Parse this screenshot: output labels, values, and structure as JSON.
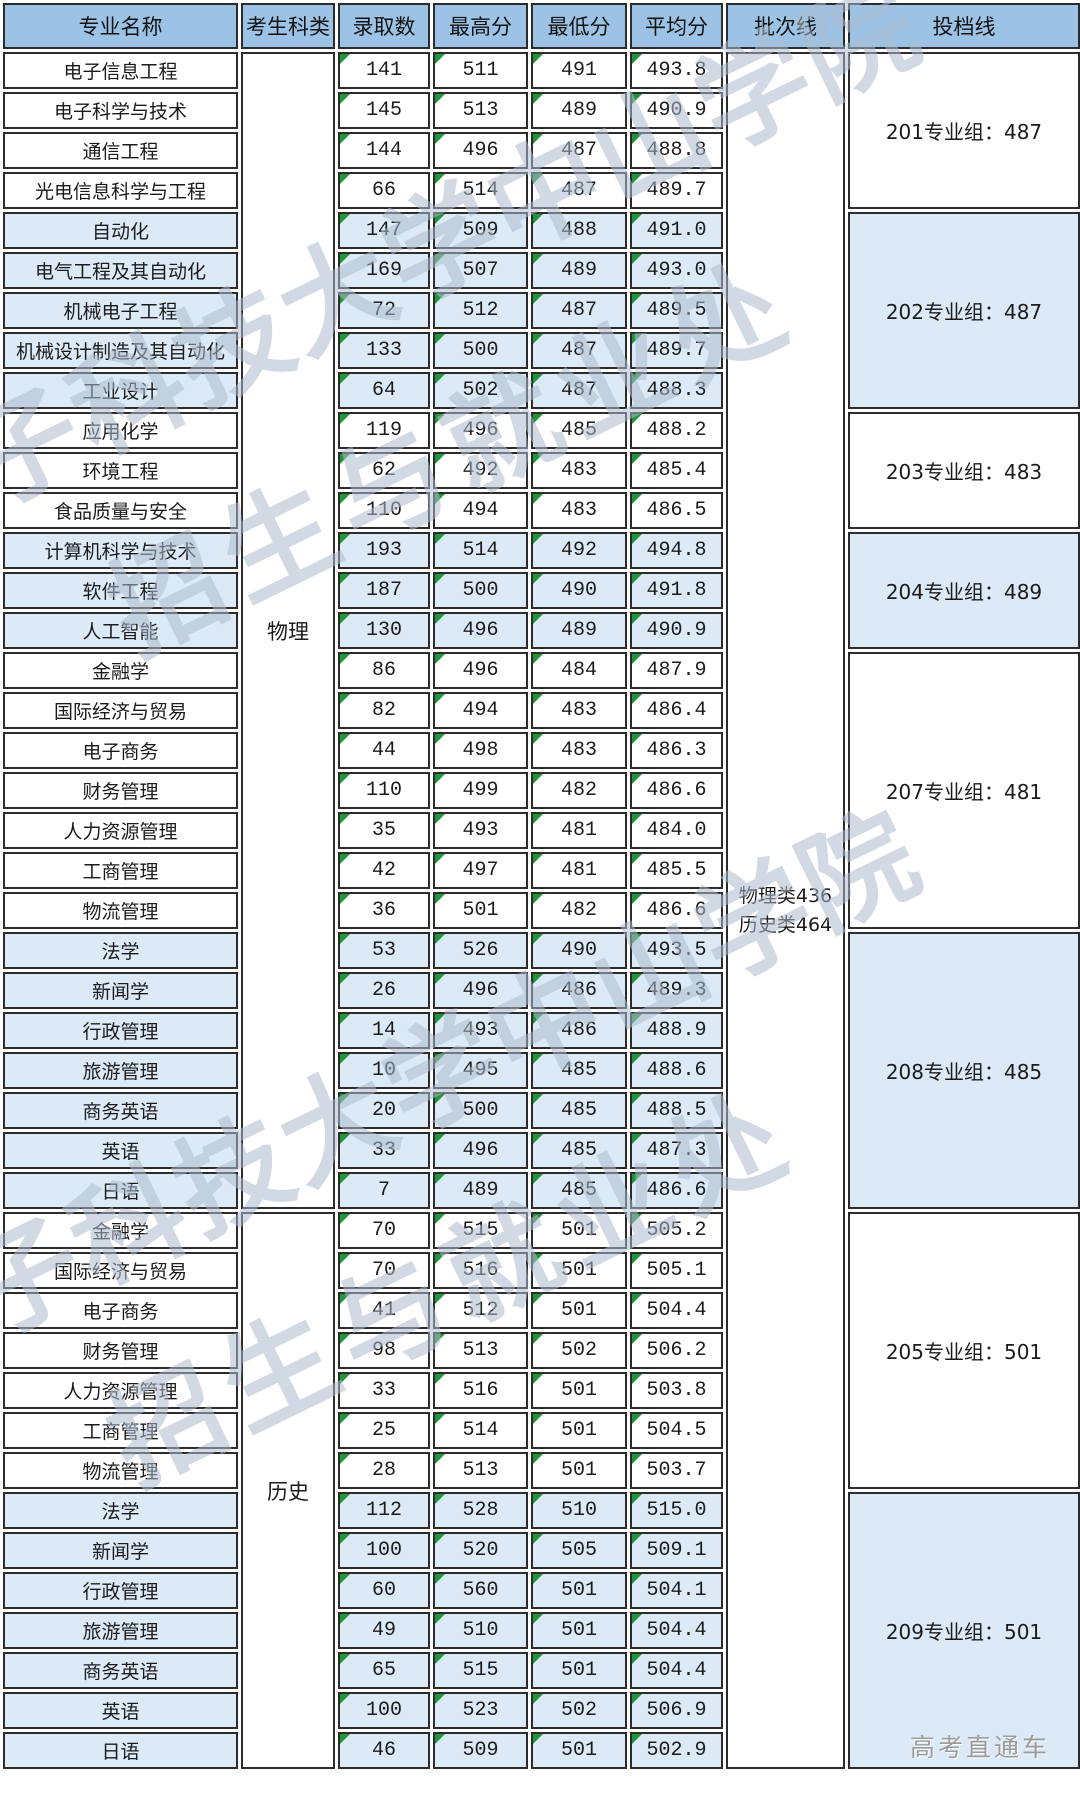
{
  "chart_data": {
    "type": "table",
    "columns": [
      "专业名称",
      "考生科类",
      "录取数",
      "最高分",
      "最低分",
      "平均分",
      "批次线",
      "投档线"
    ],
    "batch_line": [
      "物理类436",
      "历史类464"
    ],
    "sections": [
      {
        "category": "物理",
        "groups": [
          {
            "label": "201专业组：487",
            "shaded": false,
            "rows": [
              {
                "major": "电子信息工程",
                "count": "141",
                "max": "511",
                "min": "491",
                "avg": "493.8"
              },
              {
                "major": "电子科学与技术",
                "count": "145",
                "max": "513",
                "min": "489",
                "avg": "490.9"
              },
              {
                "major": "通信工程",
                "count": "144",
                "max": "496",
                "min": "487",
                "avg": "488.8"
              },
              {
                "major": "光电信息科学与工程",
                "count": "66",
                "max": "514",
                "min": "487",
                "avg": "489.7"
              }
            ]
          },
          {
            "label": "202专业组：487",
            "shaded": true,
            "rows": [
              {
                "major": "自动化",
                "count": "147",
                "max": "509",
                "min": "488",
                "avg": "491.0"
              },
              {
                "major": "电气工程及其自动化",
                "count": "169",
                "max": "507",
                "min": "489",
                "avg": "493.0"
              },
              {
                "major": "机械电子工程",
                "count": "72",
                "max": "512",
                "min": "487",
                "avg": "489.5"
              },
              {
                "major": "机械设计制造及其自动化",
                "count": "133",
                "max": "500",
                "min": "487",
                "avg": "489.7"
              },
              {
                "major": "工业设计",
                "count": "64",
                "max": "502",
                "min": "487",
                "avg": "488.3"
              }
            ]
          },
          {
            "label": "203专业组：483",
            "shaded": false,
            "rows": [
              {
                "major": "应用化学",
                "count": "119",
                "max": "496",
                "min": "485",
                "avg": "488.2"
              },
              {
                "major": "环境工程",
                "count": "62",
                "max": "492",
                "min": "483",
                "avg": "485.4"
              },
              {
                "major": "食品质量与安全",
                "count": "110",
                "max": "494",
                "min": "483",
                "avg": "486.5"
              }
            ]
          },
          {
            "label": "204专业组：489",
            "shaded": true,
            "rows": [
              {
                "major": "计算机科学与技术",
                "count": "193",
                "max": "514",
                "min": "492",
                "avg": "494.8"
              },
              {
                "major": "软件工程",
                "count": "187",
                "max": "500",
                "min": "490",
                "avg": "491.8"
              },
              {
                "major": "人工智能",
                "count": "130",
                "max": "496",
                "min": "489",
                "avg": "490.9"
              }
            ]
          },
          {
            "label": "207专业组：481",
            "shaded": false,
            "rows": [
              {
                "major": "金融学",
                "count": "86",
                "max": "496",
                "min": "484",
                "avg": "487.9"
              },
              {
                "major": "国际经济与贸易",
                "count": "82",
                "max": "494",
                "min": "483",
                "avg": "486.4"
              },
              {
                "major": "电子商务",
                "count": "44",
                "max": "498",
                "min": "483",
                "avg": "486.3"
              },
              {
                "major": "财务管理",
                "count": "110",
                "max": "499",
                "min": "482",
                "avg": "486.6"
              },
              {
                "major": "人力资源管理",
                "count": "35",
                "max": "493",
                "min": "481",
                "avg": "484.0"
              },
              {
                "major": "工商管理",
                "count": "42",
                "max": "497",
                "min": "481",
                "avg": "485.5"
              },
              {
                "major": "物流管理",
                "count": "36",
                "max": "501",
                "min": "482",
                "avg": "486.6"
              }
            ]
          },
          {
            "label": "208专业组：485",
            "shaded": true,
            "rows": [
              {
                "major": "法学",
                "count": "53",
                "max": "526",
                "min": "490",
                "avg": "493.5"
              },
              {
                "major": "新闻学",
                "count": "26",
                "max": "496",
                "min": "486",
                "avg": "489.3"
              },
              {
                "major": "行政管理",
                "count": "14",
                "max": "493",
                "min": "486",
                "avg": "488.9"
              },
              {
                "major": "旅游管理",
                "count": "10",
                "max": "495",
                "min": "485",
                "avg": "488.6"
              },
              {
                "major": "商务英语",
                "count": "20",
                "max": "500",
                "min": "485",
                "avg": "488.5"
              },
              {
                "major": "英语",
                "count": "33",
                "max": "496",
                "min": "485",
                "avg": "487.3"
              },
              {
                "major": "日语",
                "count": "7",
                "max": "489",
                "min": "485",
                "avg": "486.6"
              }
            ]
          }
        ]
      },
      {
        "category": "历史",
        "groups": [
          {
            "label": "205专业组：501",
            "shaded": false,
            "rows": [
              {
                "major": "金融学",
                "count": "70",
                "max": "515",
                "min": "501",
                "avg": "505.2"
              },
              {
                "major": "国际经济与贸易",
                "count": "70",
                "max": "516",
                "min": "501",
                "avg": "505.1"
              },
              {
                "major": "电子商务",
                "count": "41",
                "max": "512",
                "min": "501",
                "avg": "504.4"
              },
              {
                "major": "财务管理",
                "count": "98",
                "max": "513",
                "min": "502",
                "avg": "506.2"
              },
              {
                "major": "人力资源管理",
                "count": "33",
                "max": "516",
                "min": "501",
                "avg": "503.8"
              },
              {
                "major": "工商管理",
                "count": "25",
                "max": "514",
                "min": "501",
                "avg": "504.5"
              },
              {
                "major": "物流管理",
                "count": "28",
                "max": "513",
                "min": "501",
                "avg": "503.7"
              }
            ]
          },
          {
            "label": "209专业组：501",
            "shaded": true,
            "rows": [
              {
                "major": "法学",
                "count": "112",
                "max": "528",
                "min": "510",
                "avg": "515.0"
              },
              {
                "major": "新闻学",
                "count": "100",
                "max": "520",
                "min": "505",
                "avg": "509.1"
              },
              {
                "major": "行政管理",
                "count": "60",
                "max": "560",
                "min": "501",
                "avg": "504.1"
              },
              {
                "major": "旅游管理",
                "count": "49",
                "max": "510",
                "min": "501",
                "avg": "504.4"
              },
              {
                "major": "商务英语",
                "count": "65",
                "max": "515",
                "min": "501",
                "avg": "504.4"
              },
              {
                "major": "英语",
                "count": "100",
                "max": "523",
                "min": "502",
                "avg": "506.9"
              },
              {
                "major": "日语",
                "count": "46",
                "max": "509",
                "min": "501",
                "avg": "502.9"
              }
            ]
          }
        ]
      }
    ]
  },
  "watermark": {
    "line1": "电子科技大学中山学院",
    "line2": "招生与就业处"
  },
  "brand": {
    "label": "高考直通车"
  },
  "colors": {
    "header_bg": "#9CC3E6",
    "shaded_row_bg": "#DCEAF7",
    "border": "#2C2C2C",
    "note_triangle": "#1F9638",
    "watermark_text": "#ACBBCD",
    "brand_text": "#9C9C9C"
  }
}
